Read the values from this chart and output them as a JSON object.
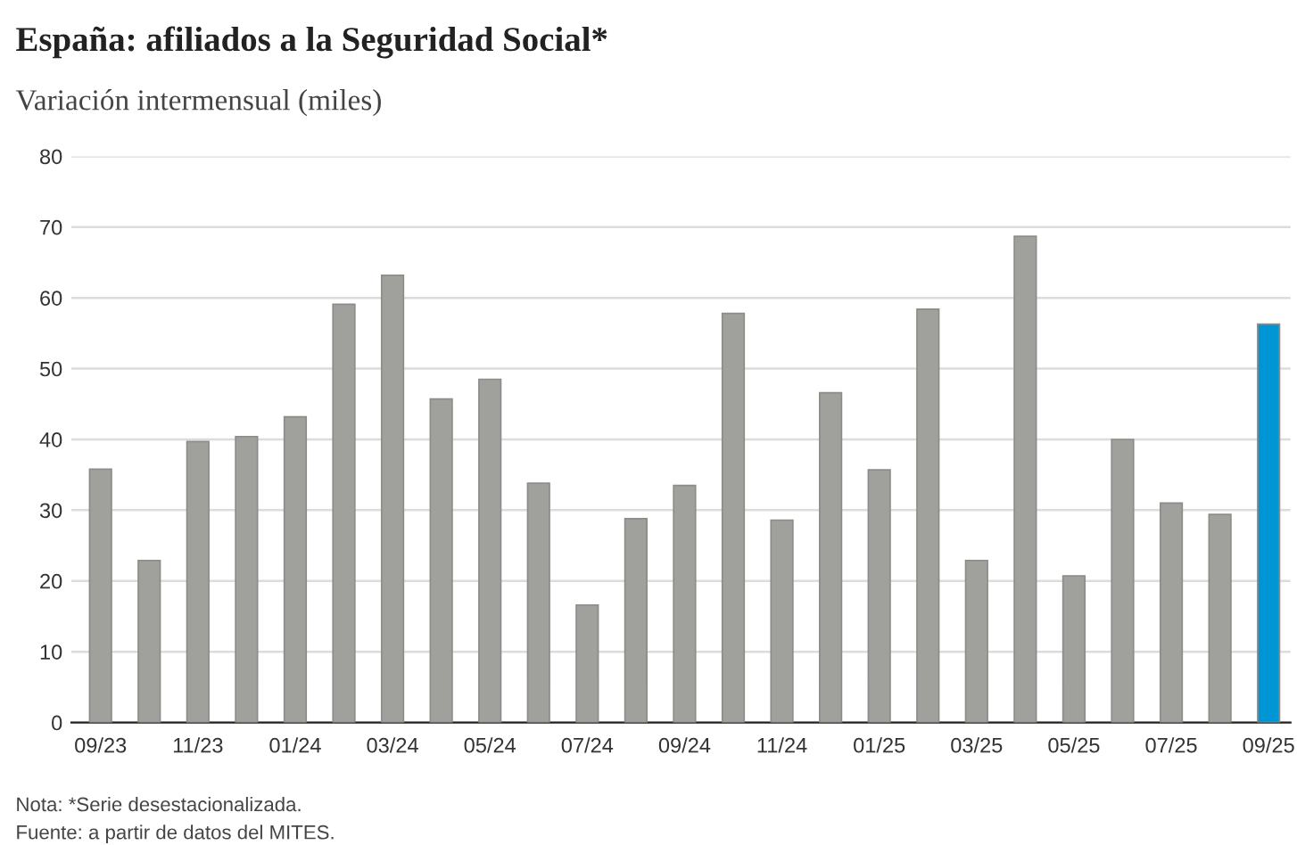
{
  "chart_data": {
    "type": "bar",
    "title": "España: afiliados a la Seguridad Social*",
    "subtitle": "Variación intermensual (miles)",
    "categories": [
      "09/23",
      null,
      "11/23",
      null,
      "01/24",
      null,
      "03/24",
      null,
      "05/24",
      null,
      "07/24",
      null,
      "09/24",
      null,
      "11/24",
      null,
      "01/25",
      null,
      "03/25",
      null,
      "05/25",
      null,
      "07/25",
      null,
      "09/25"
    ],
    "values": [
      35.8,
      22.9,
      39.7,
      40.4,
      43.2,
      59.1,
      63.2,
      45.7,
      48.5,
      33.8,
      16.6,
      28.8,
      33.5,
      57.8,
      28.6,
      46.6,
      35.7,
      58.4,
      22.9,
      68.7,
      20.7,
      40.0,
      31.0,
      29.4,
      56.3
    ],
    "colors": [
      "#a0a19c",
      "#a0a19c",
      "#a0a19c",
      "#a0a19c",
      "#a0a19c",
      "#a0a19c",
      "#a0a19c",
      "#a0a19c",
      "#a0a19c",
      "#a0a19c",
      "#a0a19c",
      "#a0a19c",
      "#a0a19c",
      "#a0a19c",
      "#a0a19c",
      "#a0a19c",
      "#a0a19c",
      "#a0a19c",
      "#a0a19c",
      "#a0a19c",
      "#a0a19c",
      "#a0a19c",
      "#a0a19c",
      "#a0a19c",
      "#0096d6"
    ],
    "ylim": [
      0,
      80
    ],
    "yticks": [
      0,
      10,
      20,
      30,
      40,
      50,
      60,
      70,
      80
    ],
    "grid": "y",
    "legend": false,
    "annotations": [
      "Nota: *Serie desestacionalizada.",
      "Fuente: a partir de datos del MITES."
    ]
  }
}
